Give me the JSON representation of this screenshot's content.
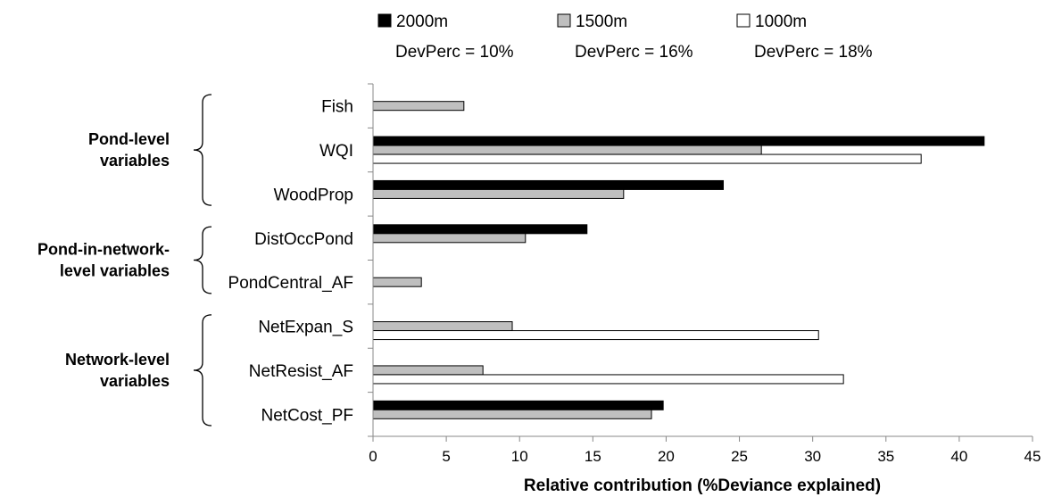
{
  "chart_data": {
    "type": "bar",
    "orientation": "horizontal",
    "categories": [
      "Fish",
      "WQI",
      "WoodProp",
      "DistOccPond",
      "PondCentral_AF",
      "NetExpan_S",
      "NetResist_AF",
      "NetCost_PF"
    ],
    "series": [
      {
        "name": "2000m",
        "subtitle": "DevPerc = 10%",
        "color": "#000000",
        "values": [
          0,
          41.7,
          23.9,
          14.6,
          0,
          0,
          0,
          19.8
        ]
      },
      {
        "name": "1500m",
        "subtitle": "DevPerc = 16%",
        "color": "#bfbfbf",
        "values": [
          6.2,
          26.5,
          17.1,
          10.4,
          3.3,
          9.5,
          7.5,
          19.0
        ]
      },
      {
        "name": "1000m",
        "subtitle": "DevPerc = 18%",
        "color": "#ffffff",
        "values": [
          0,
          37.4,
          0,
          0,
          0,
          30.4,
          32.1,
          0
        ]
      }
    ],
    "groups": [
      {
        "label_lines": [
          "Pond-level",
          "variables"
        ],
        "categories": [
          "Fish",
          "WQI",
          "WoodProp"
        ]
      },
      {
        "label_lines": [
          "Pond-in-network-",
          "level variables"
        ],
        "categories": [
          "DistOccPond",
          "PondCentral_AF"
        ]
      },
      {
        "label_lines": [
          "Network-level",
          "variables"
        ],
        "categories": [
          "NetExpan_S",
          "NetResist_AF",
          "NetCost_PF"
        ]
      }
    ],
    "xlabel": "Relative contribution (%Deviance explained)",
    "xlim": [
      0,
      45
    ],
    "xticks": [
      0,
      5,
      10,
      15,
      20,
      25,
      30,
      35,
      40,
      45
    ],
    "legend_position": "top",
    "grid": false
  }
}
